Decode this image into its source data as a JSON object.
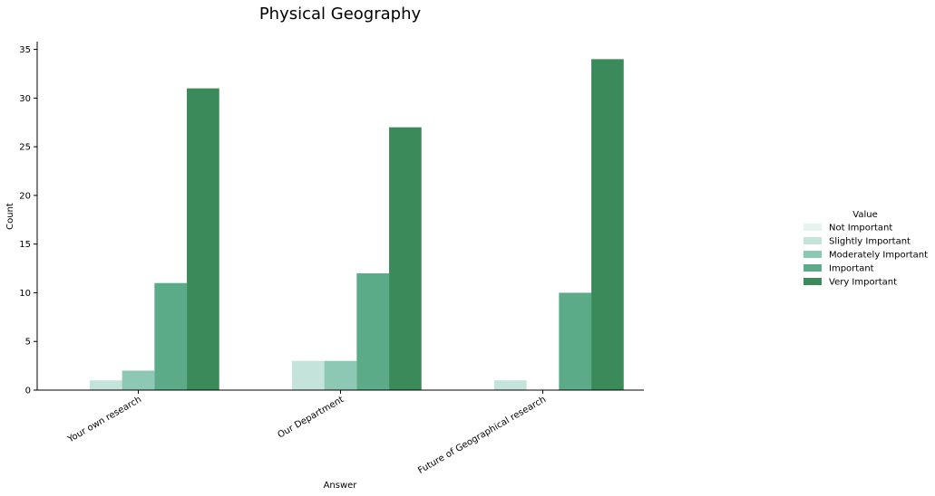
{
  "chart_data": {
    "type": "bar",
    "title": "Physical Geography",
    "xlabel": "Answer",
    "ylabel": "Count",
    "categories": [
      "Your own research",
      "Our Department",
      "Future of Geographical research"
    ],
    "ylim": [
      0,
      35.8
    ],
    "yticks": [
      0,
      5,
      10,
      15,
      20,
      25,
      30,
      35
    ],
    "grid": false,
    "legend": {
      "title": "Value",
      "placement": "right"
    },
    "series": [
      {
        "name": "Not Important",
        "color": "#e5f4ef",
        "values": [
          0,
          0,
          0
        ]
      },
      {
        "name": "Slightly Important",
        "color": "#c3e3db",
        "values": [
          1,
          3,
          1
        ]
      },
      {
        "name": "Moderately Important",
        "color": "#8cc8b4",
        "values": [
          2,
          3,
          0
        ]
      },
      {
        "name": "Important",
        "color": "#5cab88",
        "values": [
          11,
          12,
          10
        ]
      },
      {
        "name": "Very Important",
        "color": "#3a8a5a",
        "values": [
          31,
          27,
          34
        ]
      }
    ]
  }
}
